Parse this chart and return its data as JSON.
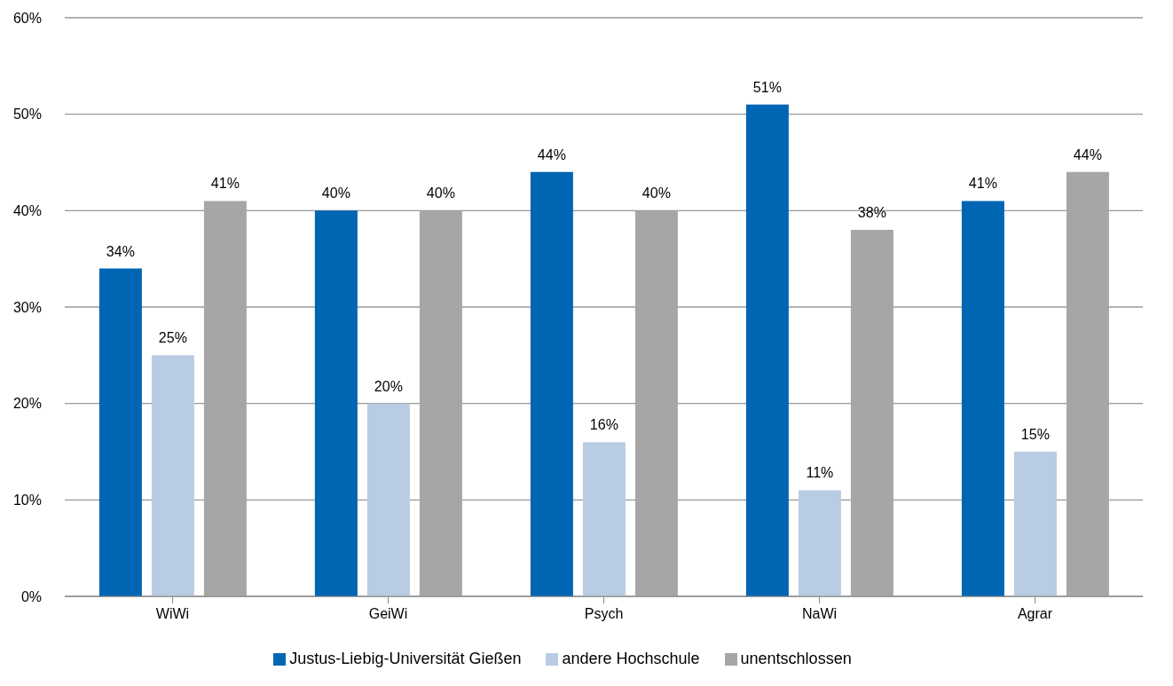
{
  "chart_data": {
    "type": "bar",
    "categories": [
      "WiWi",
      "GeiWi",
      "Psych",
      "NaWi",
      "Agrar"
    ],
    "series": [
      {
        "name": "Justus-Liebig-Universität Gießen",
        "color": "#0066b3",
        "values": [
          34,
          40,
          44,
          51,
          41
        ],
        "value_labels": [
          "34%",
          "40%",
          "44%",
          "51%",
          "41%"
        ]
      },
      {
        "name": "andere Hochschule",
        "color": "#b8cce4",
        "values": [
          25,
          20,
          16,
          11,
          15
        ],
        "value_labels": [
          "25%",
          "20%",
          "16%",
          "11%",
          "15%"
        ]
      },
      {
        "name": "unentschlossen",
        "color": "#a6a6a6",
        "values": [
          41,
          40,
          40,
          38,
          44
        ],
        "value_labels": [
          "41%",
          "40%",
          "40%",
          "38%",
          "44%"
        ]
      }
    ],
    "ylim": [
      0,
      60
    ],
    "yticks": [
      {
        "value": 0,
        "label": "0%"
      },
      {
        "value": 10,
        "label": "10%"
      },
      {
        "value": 20,
        "label": "20%"
      },
      {
        "value": 30,
        "label": "30%"
      },
      {
        "value": 40,
        "label": "40%"
      },
      {
        "value": 50,
        "label": "50%"
      },
      {
        "value": 60,
        "label": "60%"
      }
    ],
    "grid": "y",
    "legend": "bottom"
  }
}
